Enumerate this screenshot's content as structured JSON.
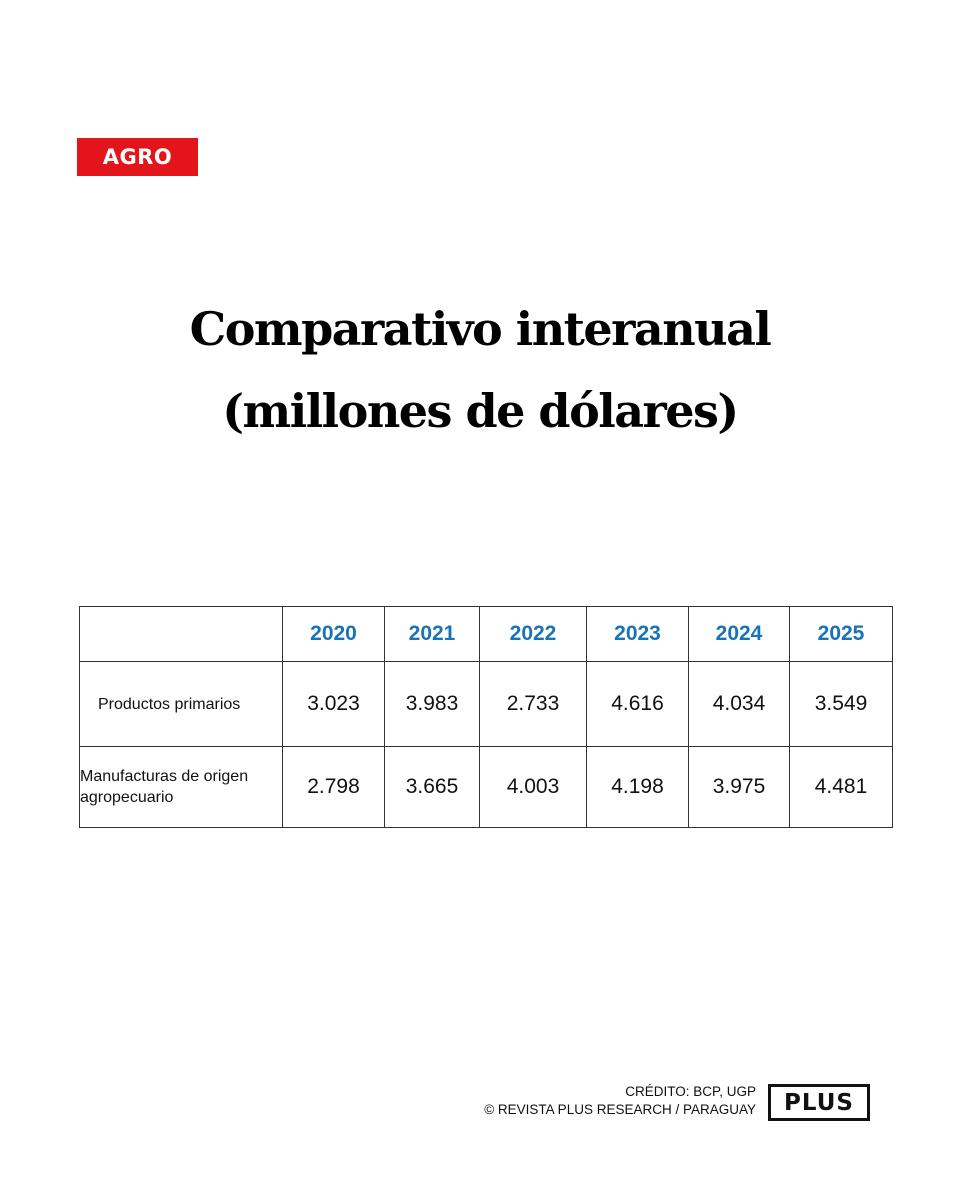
{
  "section_tag": "AGRO",
  "title_lines": [
    "Comparativo interanual",
    "(millones de dólares)"
  ],
  "chart_data": {
    "type": "table",
    "title": "Comparativo interanual (millones de dólares)",
    "columns": [
      "2020",
      "2021",
      "2022",
      "2023",
      "2024",
      "2025"
    ],
    "rows": [
      {
        "label": "Productos primarios",
        "values": [
          "3.023",
          "3.983",
          "2.733",
          "4.616",
          "4.034",
          "3.549"
        ]
      },
      {
        "label": "Manufacturas de origen agropecuario",
        "values": [
          "2.798",
          "3.665",
          "4.003",
          "4.198",
          "3.975",
          "4.481"
        ]
      }
    ]
  },
  "footer": {
    "credit": "CRÉDITO: BCP, UGP",
    "copyright": "© REVISTA PLUS RESEARCH / PARAGUAY",
    "logo_text": "PLUS"
  },
  "colors": {
    "badge": "#e3151b",
    "year_header": "#1a73b6"
  }
}
